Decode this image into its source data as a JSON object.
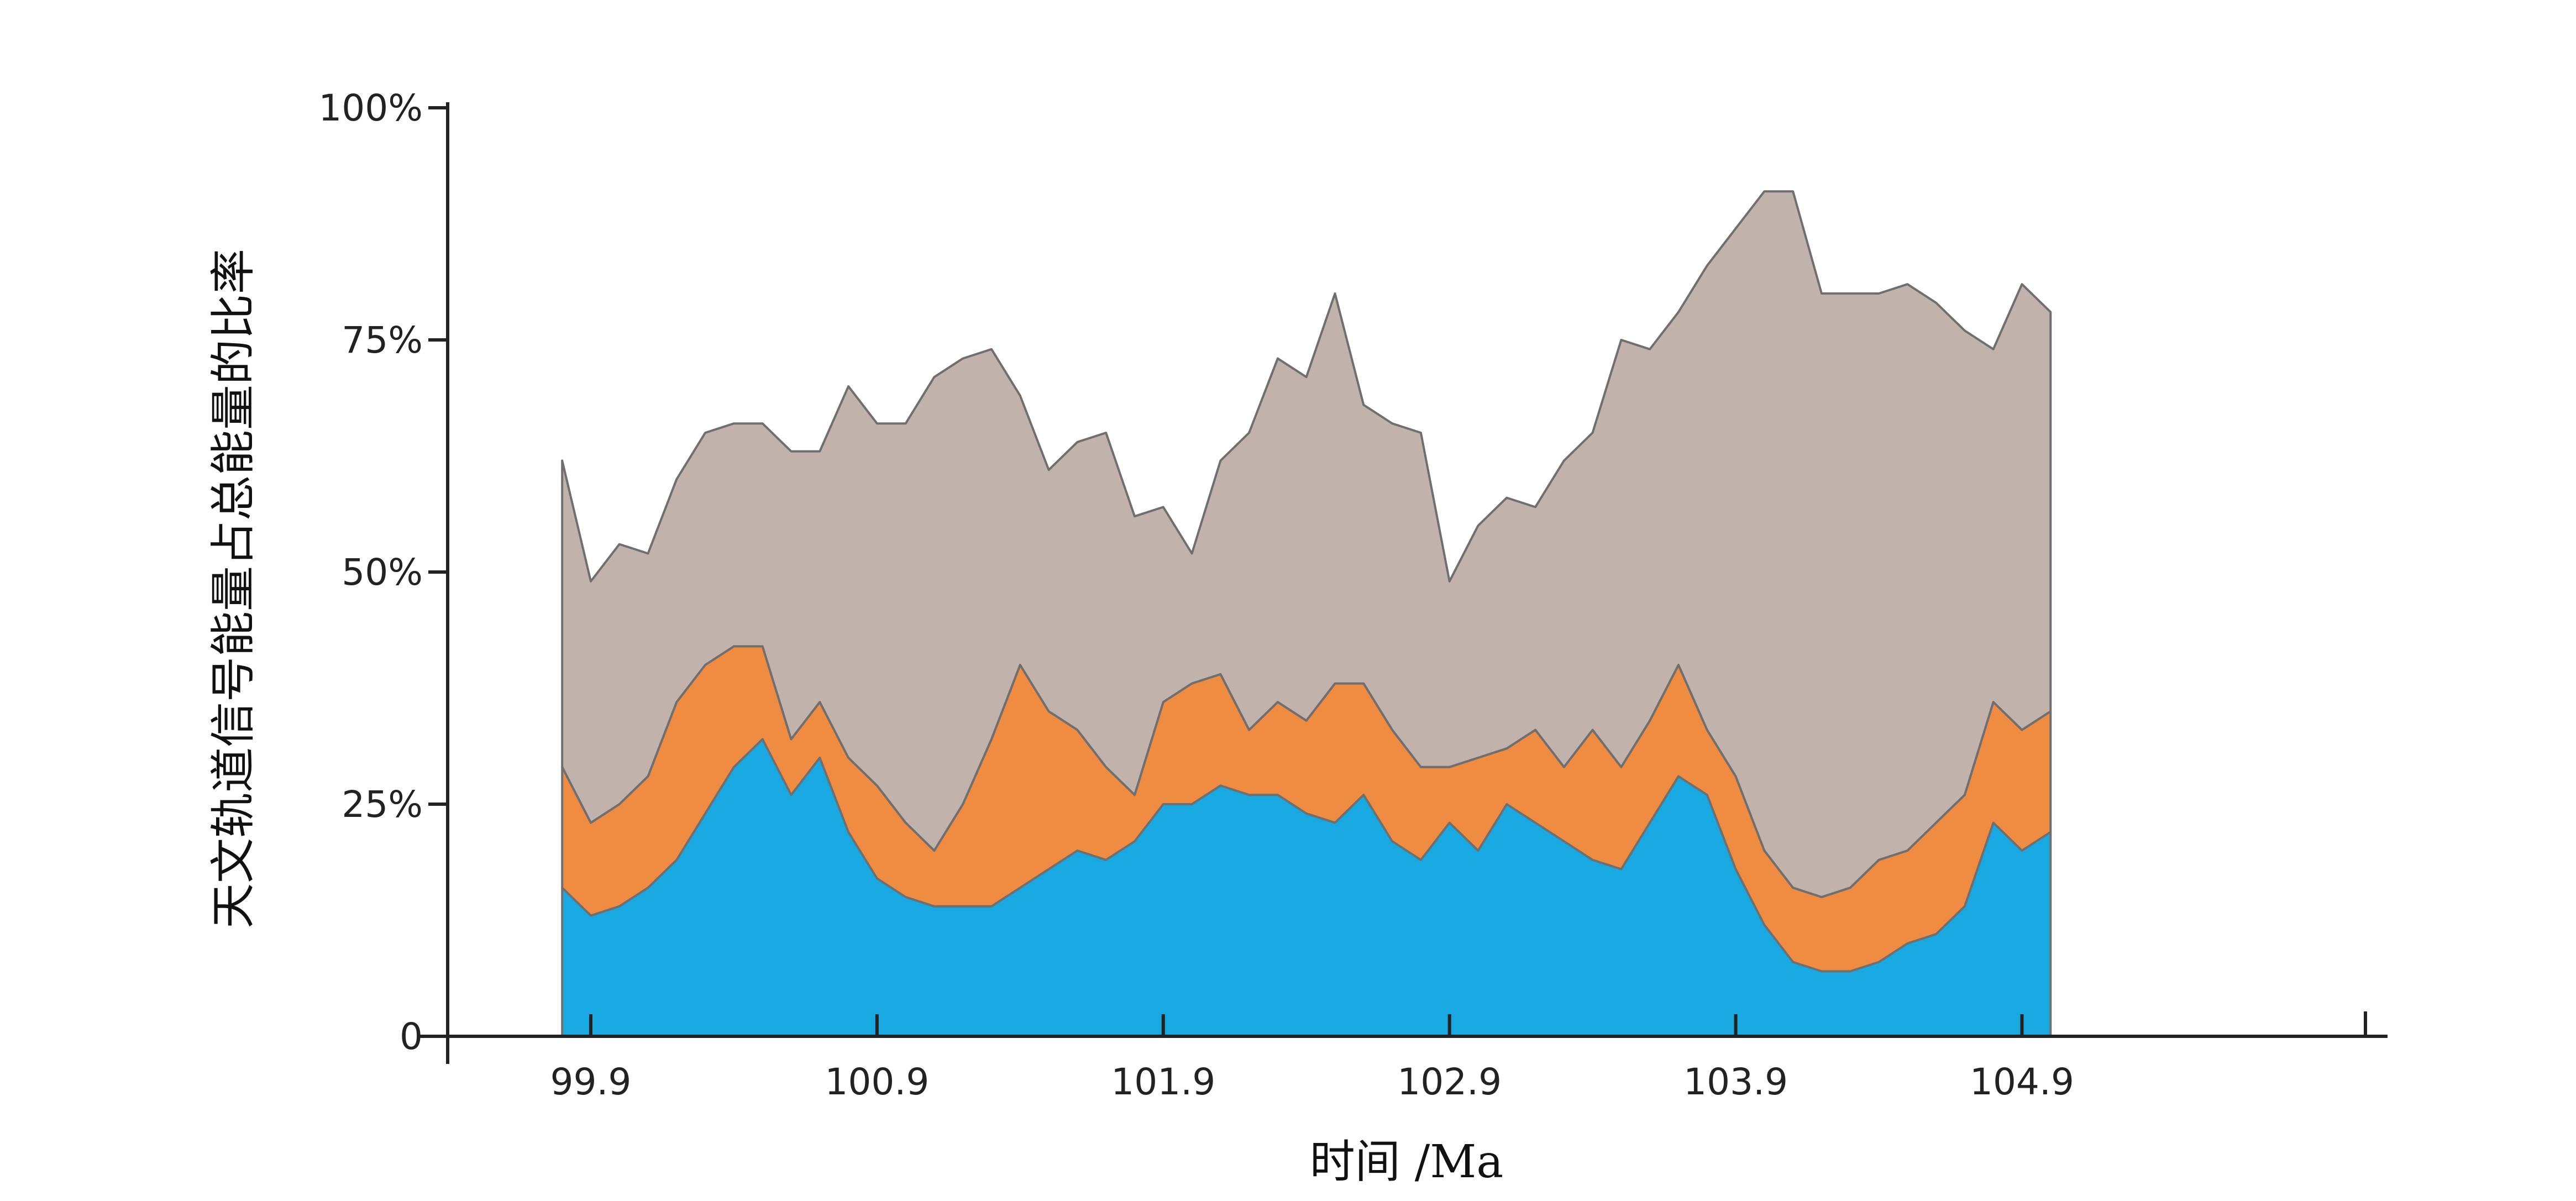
{
  "chart_data": {
    "type": "area",
    "stacked": true,
    "title": "",
    "xlabel": "时间 /Ma",
    "ylabel": "天文轨道信号能量占总能量的比率",
    "xlim": [
      99.4,
      106.1
    ],
    "ylim": [
      0,
      100
    ],
    "x_ticks": [
      {
        "value": 99.9,
        "label": "99.9"
      },
      {
        "value": 100.9,
        "label": "100.9"
      },
      {
        "value": 101.9,
        "label": "101.9"
      },
      {
        "value": 102.9,
        "label": "102.9"
      },
      {
        "value": 103.9,
        "label": "103.9"
      },
      {
        "value": 104.9,
        "label": "104.9"
      }
    ],
    "y_ticks": [
      {
        "value": 0,
        "label": "0"
      },
      {
        "value": 25,
        "label": "25%"
      },
      {
        "value": 50,
        "label": "50%"
      },
      {
        "value": 75,
        "label": "75%"
      },
      {
        "value": 100,
        "label": "100%"
      }
    ],
    "x": [
      99.8,
      99.9,
      100.0,
      100.1,
      100.2,
      100.3,
      100.4,
      100.5,
      100.6,
      100.7,
      100.8,
      100.9,
      101.0,
      101.1,
      101.2,
      101.3,
      101.4,
      101.5,
      101.6,
      101.7,
      101.8,
      101.9,
      102.0,
      102.1,
      102.2,
      102.3,
      102.4,
      102.5,
      102.6,
      102.7,
      102.8,
      102.9,
      103.0,
      103.1,
      103.2,
      103.3,
      103.4,
      103.5,
      103.6,
      103.7,
      103.8,
      103.9,
      104.0,
      104.1,
      104.2,
      104.3,
      104.4,
      104.5,
      104.6,
      104.7,
      104.8,
      104.9,
      105.0
    ],
    "series": [
      {
        "color": "#18a9e3",
        "values": [
          16,
          13,
          14,
          16,
          19,
          24,
          29,
          32,
          26,
          30,
          22,
          17,
          15,
          14,
          14,
          14,
          16,
          18,
          20,
          19,
          21,
          25,
          25,
          27,
          26,
          26,
          24,
          23,
          26,
          21,
          19,
          23,
          20,
          25,
          23,
          21,
          19,
          18,
          23,
          28,
          26,
          18,
          12,
          8,
          7,
          7,
          8,
          10,
          11,
          14,
          23,
          20,
          22
        ]
      },
      {
        "color": "#f08b42",
        "values": [
          13,
          10,
          11,
          12,
          17,
          16,
          13,
          10,
          6,
          6,
          8,
          10,
          8,
          6,
          11,
          18,
          24,
          17,
          13,
          10,
          5,
          11,
          13,
          12,
          7,
          10,
          10,
          15,
          12,
          12,
          10,
          6,
          10,
          6,
          10,
          8,
          14,
          11,
          11,
          12,
          7,
          10,
          8,
          8,
          8,
          9,
          11,
          10,
          12,
          12,
          13,
          13,
          13
        ]
      },
      {
        "color": "#c1b3ab",
        "values": [
          33,
          26,
          28,
          24,
          24,
          25,
          24,
          24,
          31,
          27,
          40,
          39,
          43,
          51,
          48,
          42,
          29,
          26,
          31,
          36,
          30,
          21,
          14,
          23,
          32,
          37,
          37,
          42,
          30,
          33,
          36,
          20,
          25,
          27,
          24,
          33,
          32,
          46,
          40,
          38,
          50,
          59,
          71,
          75,
          65,
          64,
          61,
          61,
          56,
          50,
          38,
          48,
          43
        ]
      }
    ]
  }
}
